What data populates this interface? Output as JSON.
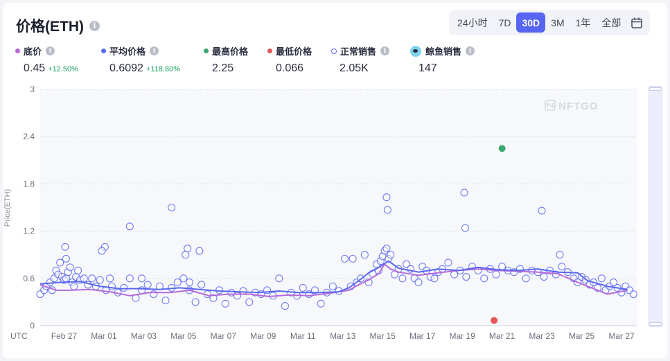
{
  "header": {
    "title": "价格(ETH)",
    "ranges": [
      "24小时",
      "7D",
      "30D",
      "3M",
      "1年",
      "全部"
    ],
    "active_range": "30D"
  },
  "stats": [
    {
      "label": "底价",
      "value": "0.45",
      "change": "+12.50%",
      "color": "#b66ad9",
      "marker": "dot",
      "info": true
    },
    {
      "label": "平均价格",
      "value": "0.6092",
      "change": "+118.80%",
      "color": "#5a67f0",
      "marker": "dot",
      "info": true
    },
    {
      "label": "最高价格",
      "value": "2.25",
      "change": "",
      "color": "#3aa872",
      "marker": "dot",
      "info": false
    },
    {
      "label": "最低价格",
      "value": "0.066",
      "change": "",
      "color": "#e2575a",
      "marker": "dot",
      "info": false
    },
    {
      "label": "正常销售",
      "value": "2.05K",
      "change": "",
      "color": "#5a67f0",
      "marker": "circle",
      "info": true
    },
    {
      "label": "鲸鱼销售",
      "value": "147",
      "change": "",
      "color": "#7fd3ef",
      "marker": "whale",
      "info": true
    }
  ],
  "watermark": "NFTGO",
  "chart_data": {
    "type": "scatter",
    "xlabel": "UTC",
    "ylabel": "Price(ETH)",
    "y_ticks": [
      "0",
      "0.6",
      "1.2",
      "1.8",
      "2.4",
      "3"
    ],
    "ylim": [
      0,
      3
    ],
    "x_ticks": [
      "Feb 27",
      "Mar 01",
      "Mar 03",
      "Mar 05",
      "Mar 07",
      "Mar 09",
      "Mar 11",
      "Mar 13",
      "Mar 15",
      "Mar 17",
      "Mar 19",
      "Mar 21",
      "Mar 23",
      "Mar 25",
      "Mar 27"
    ],
    "x_tick_pos": [
      1.2,
      3.2,
      5.2,
      7.2,
      9.2,
      11.2,
      13.2,
      15.2,
      17.2,
      19.2,
      21.2,
      23.2,
      25.2,
      27.2,
      29.2
    ],
    "xlim": [
      0,
      30
    ],
    "grid": true,
    "series": [
      {
        "name": "底价",
        "color": "#b66ad9",
        "kind": "line",
        "x": [
          0,
          0.8,
          1.5,
          2.5,
          3.5,
          4.5,
          5.5,
          6.5,
          7.5,
          8.5,
          9.5,
          10.5,
          11.5,
          12.5,
          13.5,
          14.5,
          15.5,
          16,
          16.5,
          17,
          17.3,
          17.6,
          18,
          19,
          20,
          21,
          22,
          23,
          24,
          25,
          26,
          27,
          27.5,
          28.5,
          29.5
        ],
        "y": [
          0.52,
          0.45,
          0.45,
          0.46,
          0.43,
          0.38,
          0.42,
          0.42,
          0.45,
          0.38,
          0.4,
          0.4,
          0.37,
          0.39,
          0.38,
          0.41,
          0.45,
          0.52,
          0.58,
          0.66,
          0.78,
          0.72,
          0.68,
          0.64,
          0.67,
          0.7,
          0.72,
          0.7,
          0.69,
          0.68,
          0.66,
          0.55,
          0.5,
          0.4,
          0.45
        ]
      },
      {
        "name": "平均价格",
        "color": "#5a67f0",
        "kind": "line",
        "x": [
          0,
          1,
          2,
          3,
          4,
          5,
          6,
          7,
          8,
          9,
          10,
          11,
          12,
          13,
          14,
          15,
          15.5,
          16,
          16.5,
          17,
          17.5,
          18,
          19,
          20,
          21,
          22,
          23,
          24,
          25,
          26,
          27,
          27.5,
          28.5,
          29.5
        ],
        "y": [
          0.53,
          0.55,
          0.56,
          0.5,
          0.47,
          0.47,
          0.46,
          0.48,
          0.46,
          0.44,
          0.43,
          0.42,
          0.44,
          0.42,
          0.42,
          0.43,
          0.48,
          0.57,
          0.67,
          0.74,
          0.82,
          0.73,
          0.68,
          0.72,
          0.7,
          0.74,
          0.71,
          0.7,
          0.72,
          0.68,
          0.67,
          0.57,
          0.5,
          0.46
        ]
      },
      {
        "name": "正常销售",
        "color": "#5a67f0",
        "kind": "scatter",
        "x": [
          0.0,
          0.2,
          0.3,
          0.5,
          0.6,
          0.7,
          0.8,
          0.9,
          1.0,
          1.1,
          1.2,
          1.3,
          1.4,
          1.5,
          1.6,
          1.7,
          1.8,
          1.9,
          2.0,
          2.2,
          2.4,
          2.6,
          2.8,
          3.0,
          3.3,
          3.6,
          3.9,
          4.2,
          4.5,
          4.8,
          5.1,
          5.4,
          5.7,
          6.0,
          6.3,
          6.6,
          6.9,
          7.2,
          7.5,
          7.8,
          8.1,
          8.4,
          8.7,
          9.0,
          9.3,
          9.6,
          9.9,
          10.2,
          10.5,
          10.8,
          11.1,
          11.4,
          11.7,
          12.0,
          12.3,
          12.6,
          12.9,
          13.2,
          13.5,
          13.8,
          14.1,
          14.4,
          14.7,
          15.0,
          15.3,
          15.6,
          15.9,
          16.1,
          16.3,
          16.5,
          16.7,
          16.9,
          17.0,
          17.1,
          17.2,
          17.3,
          17.4,
          17.5,
          17.6,
          17.8,
          18.0,
          18.2,
          18.4,
          18.6,
          18.8,
          19.0,
          19.2,
          19.4,
          19.6,
          19.8,
          20.0,
          20.2,
          20.5,
          20.8,
          21.1,
          21.4,
          21.7,
          22.0,
          22.3,
          22.6,
          22.9,
          23.2,
          23.5,
          23.8,
          24.1,
          24.4,
          24.7,
          25.0,
          25.3,
          25.6,
          25.9,
          26.2,
          26.5,
          26.8,
          27.0,
          27.2,
          27.4,
          27.6,
          27.8,
          28.0,
          28.2,
          28.4,
          28.6,
          28.8,
          29.0,
          29.2,
          29.4,
          29.6,
          29.8,
          1.25,
          3.25,
          6.6,
          7.3,
          7.4,
          17.4,
          17.45,
          21.3,
          21.35,
          25.2,
          26.1,
          4.5,
          5.1,
          8.0,
          15.7,
          1.3,
          3.1,
          3.5,
          7.5
        ],
        "y": [
          0.4,
          0.45,
          0.5,
          0.55,
          0.45,
          0.6,
          0.7,
          0.65,
          0.8,
          0.62,
          0.58,
          0.6,
          0.68,
          0.74,
          0.55,
          0.5,
          0.62,
          0.7,
          0.58,
          0.6,
          0.52,
          0.6,
          0.5,
          0.58,
          0.45,
          0.5,
          0.42,
          0.48,
          0.6,
          0.35,
          0.45,
          0.52,
          0.4,
          0.5,
          0.32,
          0.48,
          0.55,
          0.6,
          0.45,
          0.3,
          0.52,
          0.4,
          0.35,
          0.45,
          0.28,
          0.42,
          0.38,
          0.44,
          0.3,
          0.42,
          0.4,
          0.45,
          0.38,
          0.6,
          0.25,
          0.42,
          0.38,
          0.48,
          0.4,
          0.45,
          0.28,
          0.42,
          0.5,
          0.44,
          0.85,
          0.5,
          0.55,
          0.6,
          0.9,
          0.55,
          0.66,
          0.78,
          0.7,
          0.82,
          0.88,
          0.95,
          0.98,
          0.85,
          0.9,
          0.65,
          0.72,
          0.6,
          0.78,
          0.72,
          0.6,
          0.55,
          0.75,
          0.7,
          0.62,
          0.6,
          0.68,
          0.72,
          0.8,
          0.65,
          0.7,
          0.62,
          0.75,
          0.7,
          0.6,
          0.72,
          0.65,
          0.75,
          0.7,
          0.68,
          0.72,
          0.6,
          0.7,
          0.68,
          0.62,
          0.7,
          0.65,
          0.75,
          0.68,
          0.6,
          0.55,
          0.62,
          0.58,
          0.52,
          0.55,
          0.48,
          0.6,
          0.45,
          0.5,
          0.55,
          0.48,
          0.42,
          0.5,
          0.45,
          0.4,
          1.0,
          1.0,
          1.5,
          0.9,
          0.98,
          1.63,
          1.47,
          1.69,
          1.24,
          1.46,
          0.9,
          1.26,
          0.6,
          0.95,
          0.85,
          0.85,
          0.95,
          0.6,
          0.55
        ]
      },
      {
        "name": "最高价格",
        "color": "#3aa872",
        "kind": "point",
        "x": [
          23.2
        ],
        "y": [
          2.25
        ]
      },
      {
        "name": "最低价格",
        "color": "#e2575a",
        "kind": "point",
        "x": [
          22.8
        ],
        "y": [
          0.066
        ]
      }
    ]
  }
}
